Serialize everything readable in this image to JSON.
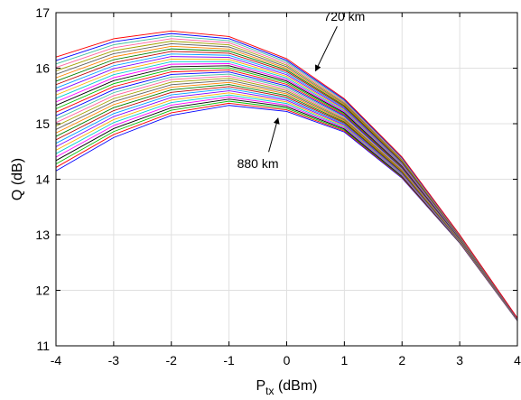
{
  "chart_data": {
    "type": "line",
    "xlabel_main": "P",
    "xlabel_sub": "tx",
    "xlabel_unit": " (dBm)",
    "ylabel": "Q (dB)",
    "xlim": [
      -4,
      4
    ],
    "ylim": [
      11,
      17
    ],
    "xticks": [
      -4,
      -3,
      -2,
      -1,
      0,
      1,
      2,
      3,
      4
    ],
    "yticks": [
      11,
      12,
      13,
      14,
      15,
      16,
      17
    ],
    "grid": true,
    "x": [
      -4,
      -3,
      -2,
      -1,
      0,
      1,
      2,
      3,
      4
    ],
    "top_curve": [
      16.2,
      16.53,
      16.67,
      16.57,
      16.17,
      15.45,
      14.4,
      13.0,
      11.5
    ],
    "bottom_curve": [
      14.15,
      14.75,
      15.15,
      15.33,
      15.22,
      14.85,
      14.02,
      12.85,
      11.45
    ],
    "series_count": 34,
    "series_colors": [
      "#0000ff",
      "#ff0000",
      "#00c000",
      "#000000",
      "#ff00ff",
      "#00cfcf",
      "#ffb000",
      "#8000ff",
      "#00a0ff",
      "#c00000",
      "#008000",
      "#ff8000",
      "#606060",
      "#a0a000",
      "#ff60a0",
      "#40c0a0"
    ],
    "annotations": [
      {
        "text": "720 km",
        "at": [
          0.5,
          15.95
        ],
        "label_pos": [
          1.0,
          16.85
        ]
      },
      {
        "text": "880 km",
        "at": [
          -0.15,
          15.1
        ],
        "label_pos": [
          -0.5,
          14.2
        ]
      }
    ]
  }
}
